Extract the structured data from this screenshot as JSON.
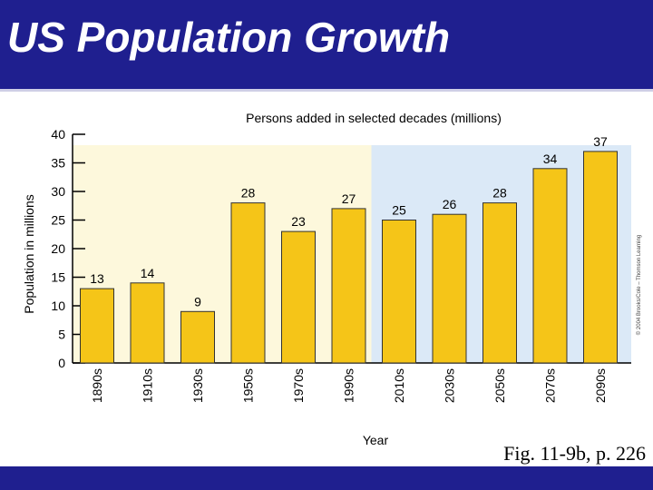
{
  "slide": {
    "title": "US Population Growth",
    "caption": "Fig. 11-9b, p. 226",
    "credit": "© 2004 Brooks/Cole – Thomson Learning"
  },
  "colors": {
    "header": "#1f1f8f",
    "past_background": "#fdf8dc",
    "projection_background": "#dbe9f7",
    "bar_fill": "#f5c518",
    "bar_stroke": "#333333"
  },
  "chart_data": {
    "type": "bar",
    "title": "Persons added in selected decades (millions)",
    "xlabel": "Year",
    "ylabel": "Population in millions",
    "categories": [
      "1890s",
      "1910s",
      "1930s",
      "1950s",
      "1970s",
      "1990s",
      "2010s",
      "2030s",
      "2050s",
      "2070s",
      "2090s"
    ],
    "values": [
      13,
      14,
      9,
      28,
      23,
      27,
      25,
      26,
      28,
      34,
      37
    ],
    "labels": [
      "13",
      "14",
      "9",
      "28",
      "23",
      "27",
      "25",
      "26",
      "28",
      "34",
      "37"
    ],
    "ylim": [
      0,
      40
    ],
    "yticks": [
      0,
      5,
      10,
      15,
      20,
      25,
      30,
      35,
      40
    ],
    "projection_starts_at": "2010s",
    "grid": false
  }
}
